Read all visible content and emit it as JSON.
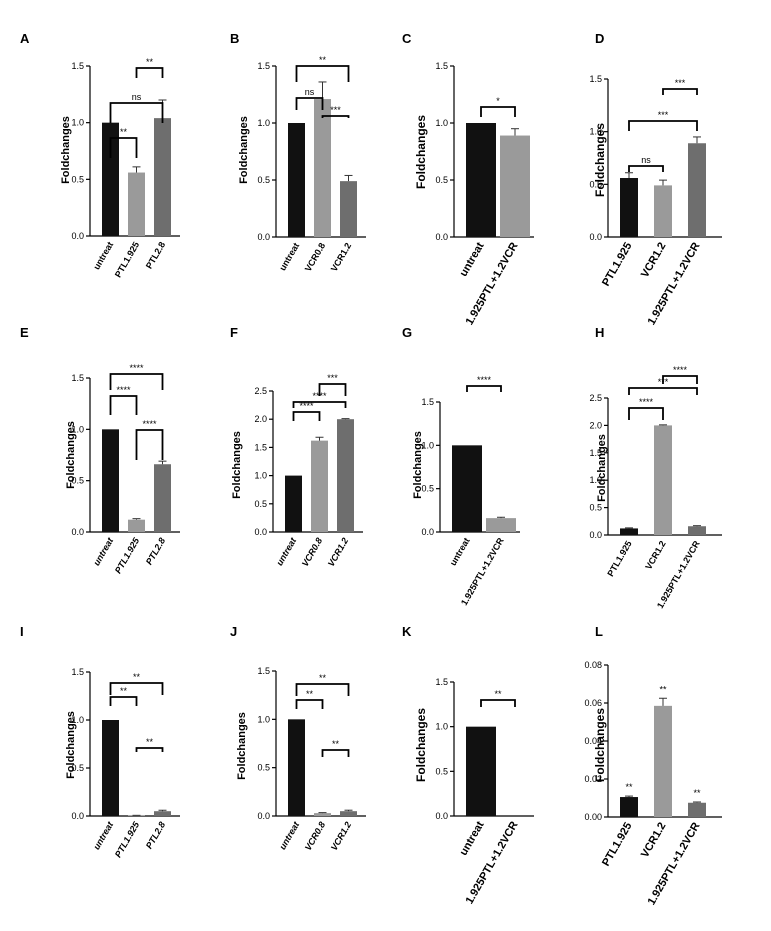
{
  "chart_data": [
    {
      "panel": "A",
      "type": "bar",
      "categories": [
        "untreat",
        "PTL1.925",
        "PTL2.8"
      ],
      "values": [
        1.0,
        0.56,
        1.04
      ],
      "errors": [
        0,
        0.05,
        0.16
      ],
      "colors": [
        "#111111",
        "#9a9a9a",
        "#6e6e6e"
      ],
      "ylabel": "Foldchanges",
      "ylim": [
        0,
        1.5
      ],
      "yticks": [
        "0.0",
        "0.5",
        "1.0",
        "1.5"
      ],
      "italic": false,
      "significance": [
        {
          "from": 0,
          "to": 1,
          "label": "**"
        },
        {
          "from": 0,
          "to": 2,
          "label": "ns"
        },
        {
          "from": 1,
          "to": 2,
          "label": "**"
        }
      ]
    },
    {
      "panel": "B",
      "type": "bar",
      "categories": [
        "untreat",
        "VCR0.8",
        "VCR1.2"
      ],
      "values": [
        1.0,
        1.21,
        0.49
      ],
      "errors": [
        0,
        0.15,
        0.05
      ],
      "colors": [
        "#111111",
        "#9a9a9a",
        "#6e6e6e"
      ],
      "ylabel": "Foldchanges",
      "ylim": [
        0,
        1.5
      ],
      "yticks": [
        "0.0",
        "0.5",
        "1.0",
        "1.5"
      ],
      "italic": false,
      "significance": [
        {
          "from": 0,
          "to": 1,
          "label": "ns"
        },
        {
          "from": 1,
          "to": 2,
          "label": "***"
        },
        {
          "from": 0,
          "to": 2,
          "label": "**"
        }
      ]
    },
    {
      "panel": "C",
      "type": "bar",
      "categories": [
        "untreat",
        "1.925PTL+1.2VCR"
      ],
      "values": [
        1.0,
        0.89
      ],
      "errors": [
        0,
        0.06
      ],
      "colors": [
        "#111111",
        "#9a9a9a"
      ],
      "ylabel": "Foldchanges",
      "ylim": [
        0,
        1.5
      ],
      "yticks": [
        "0.0",
        "0.5",
        "1.0",
        "1.5"
      ],
      "italic": false,
      "significance": [
        {
          "from": 0,
          "to": 1,
          "label": "*"
        }
      ]
    },
    {
      "panel": "D",
      "type": "bar",
      "categories": [
        "PTL1.925",
        "VCR1.2",
        "1.925PTL+1.2VCR"
      ],
      "values": [
        0.56,
        0.49,
        0.89
      ],
      "errors": [
        0.05,
        0.05,
        0.06
      ],
      "colors": [
        "#111111",
        "#9a9a9a",
        "#6e6e6e"
      ],
      "ylabel": "Foldchanges",
      "ylim": [
        0,
        1.5
      ],
      "yticks": [
        "0.0",
        "0.5",
        "1.0",
        "1.5"
      ],
      "italic": false,
      "significance": [
        {
          "from": 0,
          "to": 1,
          "label": "ns"
        },
        {
          "from": 0,
          "to": 2,
          "label": "***"
        },
        {
          "from": 1,
          "to": 2,
          "label": "***"
        }
      ]
    },
    {
      "panel": "E",
      "type": "bar",
      "categories": [
        "untreat",
        "PTL1.925",
        "PTL2.8"
      ],
      "values": [
        1.0,
        0.12,
        0.66
      ],
      "errors": [
        0,
        0.01,
        0.03
      ],
      "colors": [
        "#111111",
        "#9a9a9a",
        "#6e6e6e"
      ],
      "ylabel": "Foldchanges",
      "ylim": [
        0,
        1.5
      ],
      "yticks": [
        "0.0",
        "0.5",
        "1.0",
        "1.5"
      ],
      "italic": true,
      "significance": [
        {
          "from": 0,
          "to": 1,
          "label": "****"
        },
        {
          "from": 1,
          "to": 2,
          "label": "****"
        },
        {
          "from": 0,
          "to": 2,
          "label": "****"
        }
      ]
    },
    {
      "panel": "F",
      "type": "bar",
      "categories": [
        "untreat",
        "VCR0.8",
        "VCR1.2"
      ],
      "values": [
        1.0,
        1.62,
        2.0
      ],
      "errors": [
        0,
        0.06,
        0.01
      ],
      "colors": [
        "#111111",
        "#9a9a9a",
        "#6e6e6e"
      ],
      "ylabel": "Foldchanges",
      "ylim": [
        0,
        2.5
      ],
      "yticks": [
        "0.0",
        "0.5",
        "1.0",
        "1.5",
        "2.0",
        "2.5"
      ],
      "italic": true,
      "significance": [
        {
          "from": 0,
          "to": 1,
          "label": "****"
        },
        {
          "from": 0,
          "to": 2,
          "label": "****"
        },
        {
          "from": 1,
          "to": 2,
          "label": "***"
        }
      ]
    },
    {
      "panel": "G",
      "type": "bar",
      "categories": [
        "untreat",
        "1.925PTL+1.2VCR"
      ],
      "values": [
        1.0,
        0.16
      ],
      "errors": [
        0,
        0.01
      ],
      "colors": [
        "#111111",
        "#9a9a9a"
      ],
      "ylabel": "Foldchanges",
      "ylim": [
        0,
        1.5
      ],
      "yticks": [
        "0.0",
        "0.5",
        "1.0",
        "1.5"
      ],
      "italic": false,
      "significance": [
        {
          "from": 0,
          "to": 1,
          "label": "****"
        }
      ]
    },
    {
      "panel": "H",
      "type": "bar",
      "categories": [
        "PTL1.925",
        "VCR1.2",
        "1.925PTL+1.2VCR"
      ],
      "values": [
        0.12,
        2.0,
        0.16
      ],
      "errors": [
        0.01,
        0.01,
        0.01
      ],
      "colors": [
        "#111111",
        "#9a9a9a",
        "#6e6e6e"
      ],
      "ylabel": "Foldchanges",
      "ylim": [
        0,
        2.5
      ],
      "yticks": [
        "0.0",
        "0.5",
        "1.0",
        "1.5",
        "2.0",
        "2.5"
      ],
      "italic": false,
      "significance": [
        {
          "from": 0,
          "to": 1,
          "label": "****"
        },
        {
          "from": 0,
          "to": 2,
          "label": "***"
        },
        {
          "from": 1,
          "to": 2,
          "label": "****"
        }
      ]
    },
    {
      "panel": "I",
      "type": "bar",
      "categories": [
        "untreat",
        "PTL1.925",
        "PTL2.8"
      ],
      "values": [
        1.0,
        0.005,
        0.05
      ],
      "errors": [
        0,
        0.002,
        0.01
      ],
      "colors": [
        "#111111",
        "#9a9a9a",
        "#6e6e6e"
      ],
      "ylabel": "Foldchanges",
      "ylim": [
        0,
        1.5
      ],
      "yticks": [
        "0.0",
        "0.5",
        "1.0",
        "1.5"
      ],
      "italic": true,
      "significance": [
        {
          "from": 0,
          "to": 1,
          "label": "**"
        },
        {
          "from": 0,
          "to": 2,
          "label": "**"
        },
        {
          "from": 1,
          "to": 2,
          "label": "**"
        }
      ]
    },
    {
      "panel": "J",
      "type": "bar",
      "categories": [
        "untreat",
        "VCR0.8",
        "VCR1.2"
      ],
      "values": [
        1.0,
        0.03,
        0.05
      ],
      "errors": [
        0,
        0.005,
        0.01
      ],
      "colors": [
        "#111111",
        "#9a9a9a",
        "#6e6e6e"
      ],
      "ylabel": "Foldchanges",
      "ylim": [
        0,
        1.5
      ],
      "yticks": [
        "0.0",
        "0.5",
        "1.0",
        "1.5"
      ],
      "italic": true,
      "significance": [
        {
          "from": 0,
          "to": 1,
          "label": "**"
        },
        {
          "from": 0,
          "to": 2,
          "label": "**"
        },
        {
          "from": 1,
          "to": 2,
          "label": "**"
        }
      ]
    },
    {
      "panel": "K",
      "type": "bar",
      "categories": [
        "untreat",
        "1.925PTL+1.2VCR"
      ],
      "values": [
        1.0,
        0.0
      ],
      "errors": [
        0,
        0
      ],
      "colors": [
        "#111111",
        "#9a9a9a"
      ],
      "ylabel": "Foldchanges",
      "ylim": [
        0,
        1.5
      ],
      "yticks": [
        "0.0",
        "0.5",
        "1.0",
        "1.5"
      ],
      "italic": false,
      "significance": [
        {
          "from": 0,
          "to": 1,
          "label": "**"
        }
      ]
    },
    {
      "panel": "L",
      "type": "bar",
      "categories": [
        "PTL1.925",
        "VCR1.2",
        "1.925PTL+1.2VCR"
      ],
      "values": [
        0.0105,
        0.0585,
        0.0075
      ],
      "errors": [
        0.0005,
        0.004,
        0.0004
      ],
      "colors": [
        "#111111",
        "#9a9a9a",
        "#6e6e6e"
      ],
      "ylabel": "Foldchanges",
      "ylim": [
        0,
        0.08
      ],
      "yticks": [
        "0.00",
        "0.02",
        "0.04",
        "0.06",
        "0.08"
      ],
      "italic": false,
      "bar_labels": [
        "**",
        "**",
        "**"
      ],
      "significance": []
    }
  ]
}
